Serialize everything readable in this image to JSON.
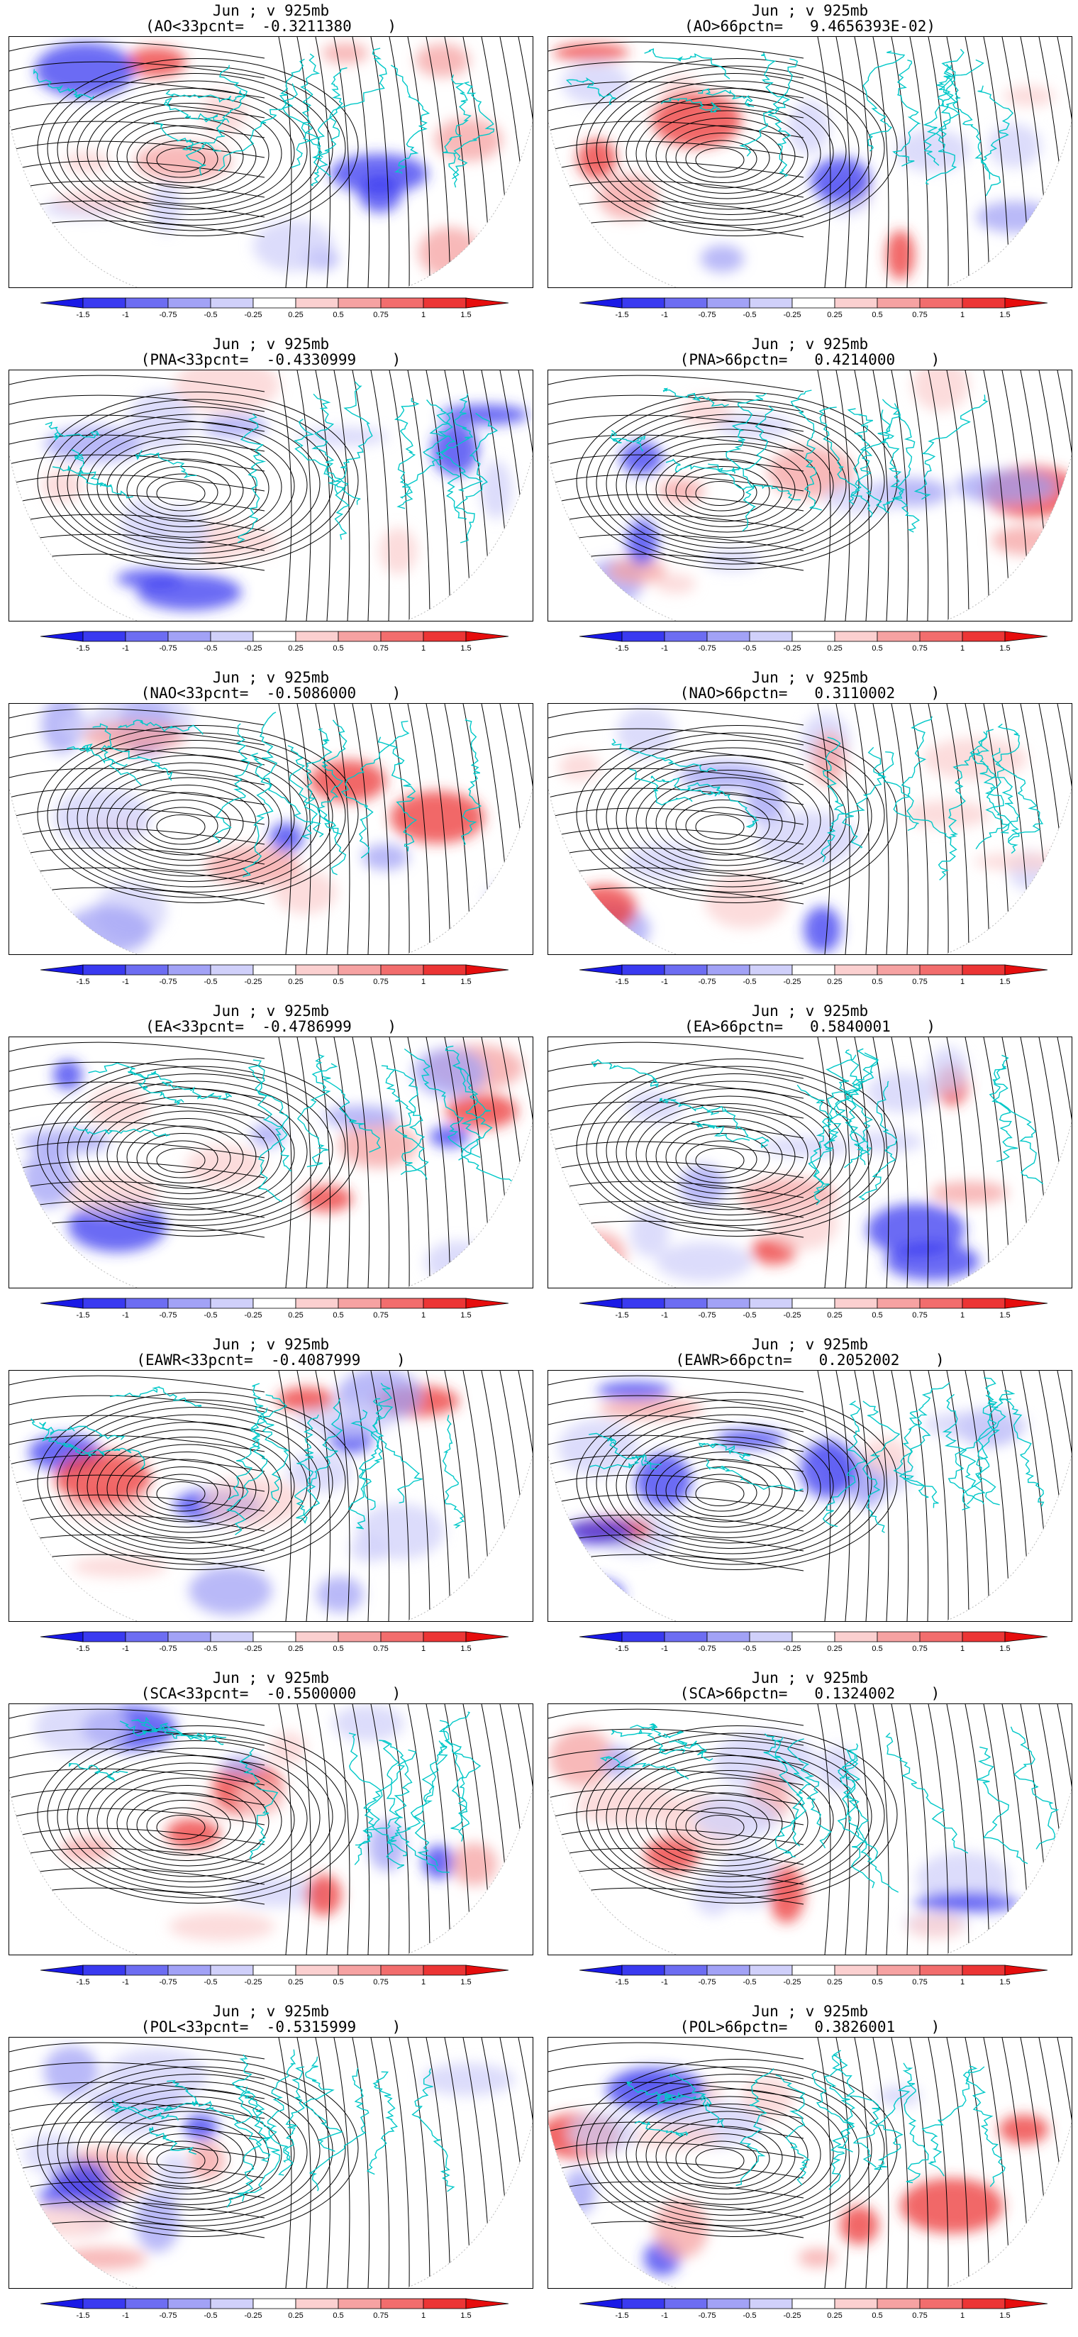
{
  "colorbar": {
    "levels": [
      "-1.5",
      "-1",
      "-0.75",
      "-0.5",
      "-0.25",
      "0.25",
      "0.5",
      "0.75",
      "1",
      "1.5"
    ],
    "colors": [
      "#1a1ae6",
      "#3a3af0",
      "#6d6df2",
      "#a2a2f6",
      "#d0d0fa",
      "#ffffff",
      "#fbd0d0",
      "#f6a2a2",
      "#f26d6d",
      "#ec3535",
      "#e60d0d"
    ]
  },
  "styling": {
    "streamline_color": "#000000",
    "coastline_color": "#00c8c8"
  },
  "panels": [
    {
      "line1": "Jun ; v 925mb",
      "line2": "(AO<33pcnt=  -0.3211380    )"
    },
    {
      "line1": "Jun ; v 925mb",
      "line2": "(AO>66pctn=   9.4656393E-02)"
    },
    {
      "line1": "Jun ; v 925mb",
      "line2": "(PNA<33pcnt=  -0.4330999    )"
    },
    {
      "line1": "Jun ; v 925mb",
      "line2": "(PNA>66pctn=   0.4214000    )"
    },
    {
      "line1": "Jun ; v 925mb",
      "line2": "(NAO<33pcnt=  -0.5086000    )"
    },
    {
      "line1": "Jun ; v 925mb",
      "line2": "(NAO>66pctn=   0.3110002    )"
    },
    {
      "line1": "Jun ; v 925mb",
      "line2": "(EA<33pcnt=  -0.4786999    )"
    },
    {
      "line1": "Jun ; v 925mb",
      "line2": "(EA>66pctn=   0.5840001    )"
    },
    {
      "line1": "Jun ; v 925mb",
      "line2": "(EAWR<33pcnt=  -0.4087999    )"
    },
    {
      "line1": "Jun ; v 925mb",
      "line2": "(EAWR>66pctn=   0.2052002    )"
    },
    {
      "line1": "Jun ; v 925mb",
      "line2": "(SCA<33pcnt=  -0.5500000    )"
    },
    {
      "line1": "Jun ; v 925mb",
      "line2": "(SCA>66pctn=   0.1324002    )"
    },
    {
      "line1": "Jun ; v 925mb",
      "line2": "(POL<33pcnt=  -0.5315999    )"
    },
    {
      "line1": "Jun ; v 925mb",
      "line2": "(POL>66pctn=   0.3826001    )"
    }
  ]
}
